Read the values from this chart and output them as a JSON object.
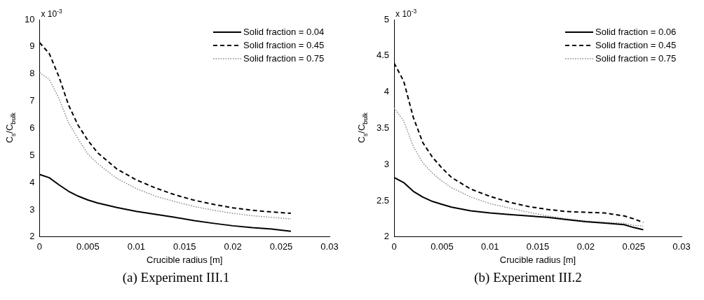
{
  "chart_data": [
    {
      "type": "line",
      "title": "(a) Experiment III.1",
      "xlabel": "Crucible radius [m]",
      "ylabel": "C$_{s}$/C$_{bulk}$",
      "annotations": [
        "x 10$^{-3}$"
      ],
      "x": [
        0,
        0.001,
        0.002,
        0.003,
        0.004,
        0.005,
        0.006,
        0.008,
        0.01,
        0.012,
        0.014,
        0.016,
        0.018,
        0.02,
        0.022,
        0.024,
        0.026
      ],
      "series": [
        {
          "name": "Solid fraction = 0.04",
          "color": "#000000",
          "line_style": "solid",
          "values": [
            4.3,
            4.18,
            3.92,
            3.68,
            3.5,
            3.36,
            3.25,
            3.08,
            2.94,
            2.83,
            2.72,
            2.6,
            2.5,
            2.41,
            2.34,
            2.29,
            2.21
          ]
        },
        {
          "name": "Solid fraction = 0.45",
          "color": "#000000",
          "line_style": "dashed",
          "values": [
            9.15,
            8.75,
            7.9,
            6.85,
            6.1,
            5.55,
            5.1,
            4.5,
            4.1,
            3.8,
            3.55,
            3.35,
            3.2,
            3.07,
            2.98,
            2.92,
            2.87
          ]
        },
        {
          "name": "Solid fraction = 0.75",
          "color": "#888888",
          "line_style": "dotted",
          "values": [
            8.05,
            7.8,
            7.1,
            6.2,
            5.6,
            5.05,
            4.7,
            4.15,
            3.78,
            3.5,
            3.3,
            3.12,
            2.98,
            2.87,
            2.78,
            2.72,
            2.66
          ]
        }
      ],
      "xlim": [
        0,
        0.03
      ],
      "xticks": [
        0,
        0.005,
        0.01,
        0.015,
        0.02,
        0.025,
        0.03
      ],
      "ylim": [
        2,
        10
      ],
      "yticks": [
        2,
        3,
        4,
        5,
        6,
        7,
        8,
        9,
        10
      ],
      "grid": false,
      "legend": "top right",
      "marker": "none"
    },
    {
      "type": "line",
      "title": "(b) Experiment III.2",
      "xlabel": "Crucible radius [m]",
      "ylabel": "C$_{s}$/C$_{bulk}$",
      "annotations": [
        "x 10$^{-3}$"
      ],
      "x": [
        0,
        0.001,
        0.002,
        0.003,
        0.004,
        0.005,
        0.006,
        0.008,
        0.01,
        0.012,
        0.014,
        0.016,
        0.018,
        0.02,
        0.022,
        0.024,
        0.025,
        0.026
      ],
      "series": [
        {
          "name": "Solid fraction = 0.06",
          "color": "#000000",
          "line_style": "solid",
          "values": [
            2.82,
            2.75,
            2.63,
            2.55,
            2.49,
            2.45,
            2.41,
            2.36,
            2.33,
            2.31,
            2.29,
            2.27,
            2.24,
            2.21,
            2.19,
            2.17,
            2.13,
            2.1
          ]
        },
        {
          "name": "Solid fraction = 0.45",
          "color": "#000000",
          "line_style": "dashed",
          "values": [
            4.4,
            4.15,
            3.65,
            3.3,
            3.1,
            2.95,
            2.82,
            2.66,
            2.56,
            2.48,
            2.42,
            2.38,
            2.35,
            2.34,
            2.33,
            2.29,
            2.25,
            2.2
          ]
        },
        {
          "name": "Solid fraction = 0.75",
          "color": "#888888",
          "line_style": "dotted",
          "values": [
            3.78,
            3.6,
            3.25,
            3.02,
            2.88,
            2.77,
            2.68,
            2.55,
            2.46,
            2.4,
            2.34,
            2.29,
            2.25,
            2.22,
            2.2,
            2.19,
            2.16,
            2.15
          ]
        }
      ],
      "xlim": [
        0,
        0.03
      ],
      "xticks": [
        0,
        0.005,
        0.01,
        0.015,
        0.02,
        0.025,
        0.03
      ],
      "ylim": [
        2,
        5
      ],
      "yticks": [
        2,
        2.5,
        3,
        3.5,
        4,
        4.5,
        5
      ],
      "grid": false,
      "legend": "top right",
      "marker": "none"
    }
  ]
}
